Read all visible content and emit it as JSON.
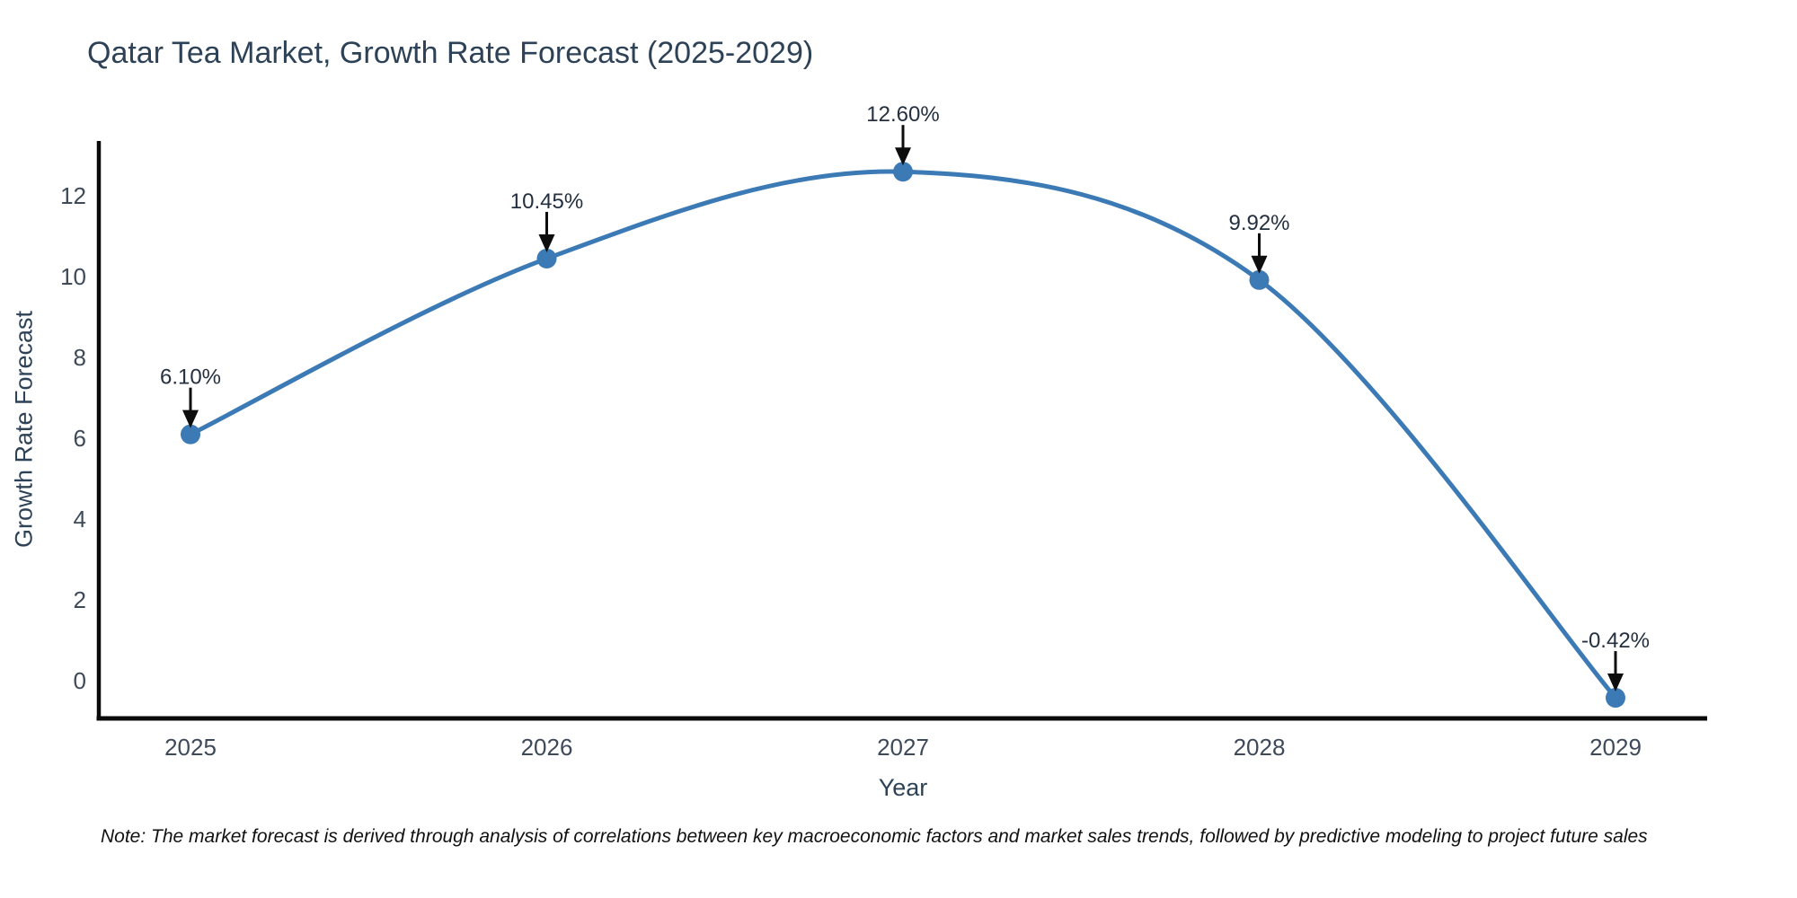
{
  "chart": {
    "title": "Qatar Tea Market, Growth Rate Forecast (2025-2029)",
    "x_axis": {
      "label": "Year",
      "ticks": [
        "2025",
        "2026",
        "2027",
        "2028",
        "2029"
      ]
    },
    "y_axis": {
      "label": "Growth Rate Forecast",
      "ticks": [
        "0",
        "2",
        "4",
        "6",
        "8",
        "10",
        "12"
      ]
    },
    "note": "Note: The market forecast is derived through analysis of correlations between key macroeconomic factors and market sales trends, followed by predictive modeling to project future sales",
    "colors": {
      "line": "#3c7ab5",
      "marker": "#3c7ab5",
      "axis": "#0a0a0a",
      "arrow": "#0d0d0d",
      "title_text": "#2e4257",
      "tick_text": "#3e4a59",
      "annotation_text": "#24303f",
      "note_text": "#111111",
      "background": "#ffffff"
    }
  },
  "chart_data": {
    "type": "line",
    "title": "Qatar Tea Market, Growth Rate Forecast (2025-2029)",
    "xlabel": "Year",
    "ylabel": "Growth Rate Forecast",
    "x": [
      2025,
      2026,
      2027,
      2028,
      2029
    ],
    "series": [
      {
        "name": "Growth Rate Forecast",
        "values": [
          6.1,
          10.45,
          12.6,
          9.92,
          -0.42
        ]
      }
    ],
    "point_labels": [
      "6.10%",
      "10.45%",
      "12.60%",
      "9.92%",
      "-0.42%"
    ],
    "yticks": [
      0,
      2,
      4,
      6,
      8,
      10,
      12
    ],
    "ylim": [
      -0.93,
      13.36
    ],
    "line_shape": "spline",
    "grid": false,
    "legend": "none",
    "markers": true,
    "annotations": "each point labeled with its percent value above a downward black arrow"
  }
}
